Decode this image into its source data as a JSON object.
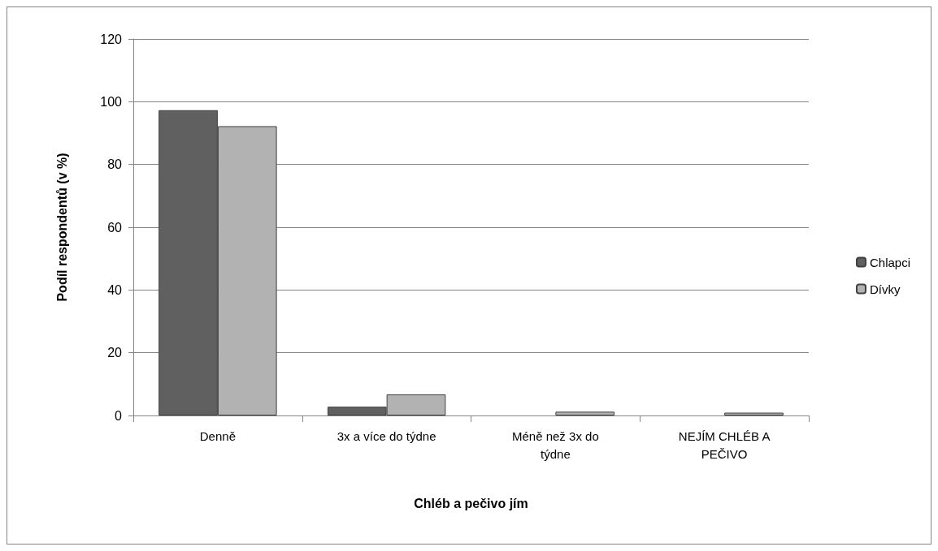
{
  "chart_data": {
    "type": "bar",
    "xlabel": "Chléb a pečivo jím",
    "ylabel": "Podíl respondentů (v %)",
    "categories": [
      "Denně",
      "3x a více do týdne",
      "Méně než 3x do\ntýdne",
      "NEJÍM CHLÉB A\nPEČIVO"
    ],
    "series": [
      {
        "name": "Chlapci",
        "color": "#606060",
        "values": [
          97.3,
          2.8,
          0,
          0
        ]
      },
      {
        "name": "Dívky",
        "color": "#b2b2b2",
        "values": [
          92.2,
          6.7,
          1.2,
          0.9
        ]
      }
    ],
    "ylim": [
      0,
      120
    ],
    "yticks": [
      0,
      20,
      40,
      60,
      80,
      100,
      120
    ],
    "grid": "y",
    "legend": "right"
  }
}
